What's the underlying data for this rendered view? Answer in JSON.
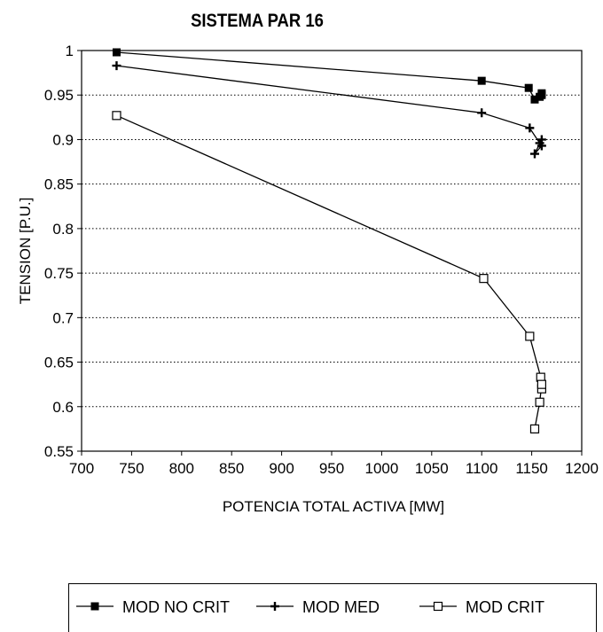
{
  "chart_data": {
    "type": "line",
    "title": "SISTEMA PAR 16",
    "xlabel": "POTENCIA TOTAL ACTIVA [MW]",
    "ylabel": "TENSION [P.U.]",
    "xlim": [
      700,
      1200
    ],
    "ylim": [
      0.55,
      1
    ],
    "x_ticks": [
      700,
      750,
      800,
      850,
      900,
      950,
      1000,
      1050,
      1100,
      1150,
      1200
    ],
    "y_ticks": [
      0.55,
      0.6,
      0.65,
      0.7,
      0.75,
      0.8,
      0.85,
      0.9,
      0.95,
      1
    ],
    "y_tick_labels": [
      "0.55",
      "0.6",
      "0.65",
      "0.7",
      "0.75",
      "0.8",
      "0.85",
      "0.9",
      "0.95",
      "1"
    ],
    "grid": "horizontal dotted",
    "legend_position": "bottom",
    "series": [
      {
        "name": "MOD NO CRIT",
        "marker": "filled-square",
        "color": "#000000",
        "points": [
          [
            735,
            0.998
          ],
          [
            1100,
            0.966
          ],
          [
            1147,
            0.958
          ],
          [
            1153,
            0.945
          ],
          [
            1158,
            0.948
          ],
          [
            1160,
            0.952
          ],
          [
            1160,
            0.95
          ]
        ]
      },
      {
        "name": "MOD MED",
        "marker": "plus",
        "color": "#000000",
        "points": [
          [
            735,
            0.983
          ],
          [
            1100,
            0.93
          ],
          [
            1148,
            0.913
          ],
          [
            1158,
            0.896
          ],
          [
            1160,
            0.893
          ],
          [
            1153,
            0.884
          ],
          [
            1160,
            0.9
          ]
        ]
      },
      {
        "name": "MOD CRIT",
        "marker": "open-square",
        "color": "#000000",
        "points": [
          [
            735,
            0.927
          ],
          [
            1102,
            0.744
          ],
          [
            1148,
            0.679
          ],
          [
            1159,
            0.633
          ],
          [
            1160,
            0.62
          ],
          [
            1160,
            0.625
          ],
          [
            1158,
            0.605
          ],
          [
            1153,
            0.575
          ]
        ]
      }
    ]
  }
}
